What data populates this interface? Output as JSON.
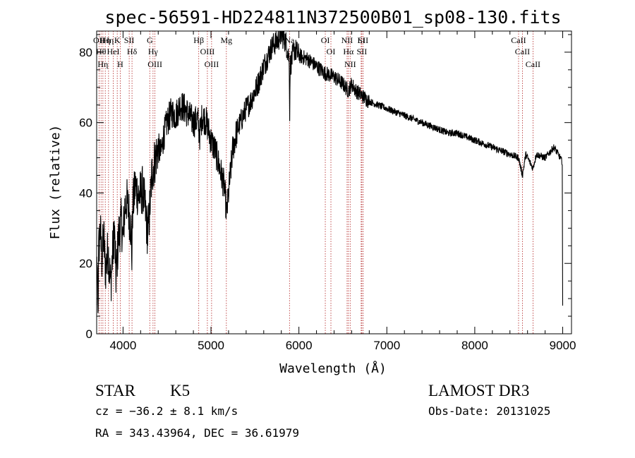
{
  "chart_data": {
    "type": "line",
    "title": "spec-56591-HD224811N372500B01_sp08-130.fits",
    "xlabel": "Wavelength (Å)",
    "ylabel": "Flux (relative)",
    "xlim": [
      3700,
      9100
    ],
    "ylim": [
      0,
      86
    ],
    "x_ticks": [
      4000,
      5000,
      6000,
      7000,
      8000,
      9000
    ],
    "y_ticks": [
      0,
      20,
      40,
      60,
      80
    ],
    "grid": false,
    "series": [
      {
        "color": "#000000",
        "points": [
          [
            3700,
            14
          ],
          [
            3720,
            22
          ],
          [
            3740,
            30
          ],
          [
            3760,
            21
          ],
          [
            3780,
            28
          ],
          [
            3800,
            18
          ],
          [
            3830,
            24
          ],
          [
            3860,
            14
          ],
          [
            3880,
            22
          ],
          [
            3900,
            30
          ],
          [
            3920,
            16
          ],
          [
            3950,
            28
          ],
          [
            3980,
            32
          ],
          [
            4000,
            27
          ],
          [
            4020,
            36
          ],
          [
            4040,
            38
          ],
          [
            4070,
            34
          ],
          [
            4090,
            30
          ],
          [
            4100,
            22
          ],
          [
            4110,
            36
          ],
          [
            4140,
            42
          ],
          [
            4180,
            39
          ],
          [
            4220,
            41
          ],
          [
            4250,
            36
          ],
          [
            4280,
            28
          ],
          [
            4300,
            34
          ],
          [
            4330,
            46
          ],
          [
            4360,
            49
          ],
          [
            4400,
            53
          ],
          [
            4430,
            51
          ],
          [
            4460,
            56
          ],
          [
            4500,
            60
          ],
          [
            4550,
            63
          ],
          [
            4600,
            62
          ],
          [
            4650,
            65
          ],
          [
            4700,
            64
          ],
          [
            4750,
            62
          ],
          [
            4800,
            60
          ],
          [
            4850,
            61
          ],
          [
            4870,
            56
          ],
          [
            4900,
            62
          ],
          [
            4950,
            60
          ],
          [
            5000,
            55
          ],
          [
            5050,
            52
          ],
          [
            5100,
            47
          ],
          [
            5150,
            42
          ],
          [
            5180,
            34
          ],
          [
            5200,
            40
          ],
          [
            5250,
            53
          ],
          [
            5300,
            58
          ],
          [
            5350,
            61
          ],
          [
            5400,
            64
          ],
          [
            5450,
            66
          ],
          [
            5500,
            69
          ],
          [
            5550,
            72
          ],
          [
            5600,
            76
          ],
          [
            5650,
            79
          ],
          [
            5700,
            82
          ],
          [
            5750,
            83
          ],
          [
            5800,
            85
          ],
          [
            5850,
            83
          ],
          [
            5890,
            78
          ],
          [
            5895,
            62
          ],
          [
            5900,
            76
          ],
          [
            5950,
            81
          ],
          [
            6000,
            79
          ],
          [
            6100,
            78
          ],
          [
            6200,
            76
          ],
          [
            6300,
            74
          ],
          [
            6400,
            73
          ],
          [
            6500,
            71
          ],
          [
            6563,
            69
          ],
          [
            6600,
            71
          ],
          [
            6650,
            69
          ],
          [
            6700,
            68
          ],
          [
            6800,
            66
          ],
          [
            6900,
            65
          ],
          [
            7000,
            64
          ],
          [
            7100,
            63
          ],
          [
            7200,
            62
          ],
          [
            7300,
            61
          ],
          [
            7400,
            60
          ],
          [
            7500,
            59
          ],
          [
            7600,
            58
          ],
          [
            7700,
            57
          ],
          [
            7800,
            57
          ],
          [
            7900,
            56
          ],
          [
            8000,
            55
          ],
          [
            8100,
            54
          ],
          [
            8200,
            53
          ],
          [
            8300,
            52
          ],
          [
            8400,
            51
          ],
          [
            8498,
            50
          ],
          [
            8542,
            45
          ],
          [
            8580,
            51
          ],
          [
            8662,
            47
          ],
          [
            8700,
            51
          ],
          [
            8800,
            50
          ],
          [
            8900,
            53
          ],
          [
            8950,
            51
          ],
          [
            8990,
            49
          ],
          [
            9000,
            8
          ]
        ]
      }
    ],
    "line_markers": [
      {
        "wavelength": 3727,
        "label": "OII"
      },
      {
        "wavelength": 3750,
        "label": "Hθ"
      },
      {
        "wavelength": 3771,
        "label": "Hη"
      },
      {
        "wavelength": 3798,
        "label": "Hη"
      },
      {
        "wavelength": 3835,
        "label": "Hη"
      },
      {
        "wavelength": 3889,
        "label": "HeI"
      },
      {
        "wavelength": 3934,
        "label": "K"
      },
      {
        "wavelength": 3968,
        "label": "H"
      },
      {
        "wavelength": 4070,
        "label": "SII"
      },
      {
        "wavelength": 4102,
        "label": "Hδ"
      },
      {
        "wavelength": 4304,
        "label": "G"
      },
      {
        "wavelength": 4341,
        "label": "Hγ"
      },
      {
        "wavelength": 4363,
        "label": "OIII"
      },
      {
        "wavelength": 4861,
        "label": "Hβ"
      },
      {
        "wavelength": 4959,
        "label": "OIII"
      },
      {
        "wavelength": 5007,
        "label": "OIII"
      },
      {
        "wavelength": 5175,
        "label": "Mg"
      },
      {
        "wavelength": 5893,
        "label": "Na"
      },
      {
        "wavelength": 6300,
        "label": "OI"
      },
      {
        "wavelength": 6364,
        "label": "OI"
      },
      {
        "wavelength": 6548,
        "label": "NII"
      },
      {
        "wavelength": 6563,
        "label": "Hα"
      },
      {
        "wavelength": 6583,
        "label": "NII"
      },
      {
        "wavelength": 6708,
        "label": "Li"
      },
      {
        "wavelength": 6716,
        "label": "SII"
      },
      {
        "wavelength": 6731,
        "label": "SII"
      },
      {
        "wavelength": 8498,
        "label": "CaII"
      },
      {
        "wavelength": 8542,
        "label": "CaII"
      },
      {
        "wavelength": 8662,
        "label": "CaII"
      }
    ]
  },
  "info": {
    "class": "STAR",
    "subclass": "K5",
    "survey": "LAMOST DR3",
    "cz": "cz = −36.2 ± 8.1 km/s",
    "obs_date": "Obs-Date: 20131025",
    "radec": "RA = 343.43964, DEC =  36.61979"
  },
  "colors": {
    "spectrum": "#000000",
    "line_marker": "#b22222"
  }
}
